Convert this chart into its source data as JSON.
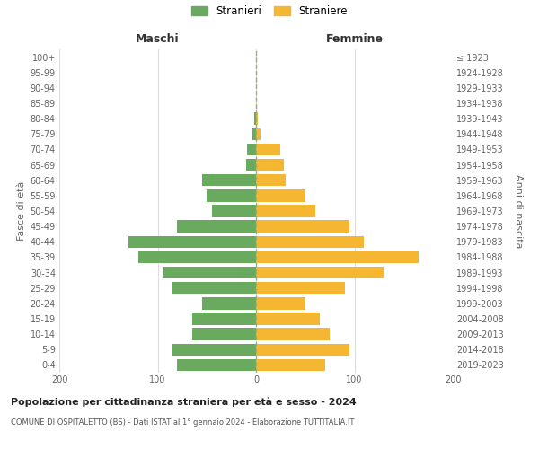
{
  "age_groups": [
    "0-4",
    "5-9",
    "10-14",
    "15-19",
    "20-24",
    "25-29",
    "30-34",
    "35-39",
    "40-44",
    "45-49",
    "50-54",
    "55-59",
    "60-64",
    "65-69",
    "70-74",
    "75-79",
    "80-84",
    "85-89",
    "90-94",
    "95-99",
    "100+"
  ],
  "birth_years": [
    "2019-2023",
    "2014-2018",
    "2009-2013",
    "2004-2008",
    "1999-2003",
    "1994-1998",
    "1989-1993",
    "1984-1988",
    "1979-1983",
    "1974-1978",
    "1969-1973",
    "1964-1968",
    "1959-1963",
    "1954-1958",
    "1949-1953",
    "1944-1948",
    "1939-1943",
    "1934-1938",
    "1929-1933",
    "1924-1928",
    "≤ 1923"
  ],
  "maschi": [
    80,
    85,
    65,
    65,
    55,
    85,
    95,
    120,
    130,
    80,
    45,
    50,
    55,
    10,
    9,
    4,
    2,
    0,
    0,
    0,
    0
  ],
  "femmine": [
    70,
    95,
    75,
    65,
    50,
    90,
    130,
    165,
    110,
    95,
    60,
    50,
    30,
    28,
    25,
    5,
    2,
    0,
    0,
    0,
    0
  ],
  "color_maschi": "#6aaa5e",
  "color_femmine": "#f5b731",
  "title": "Popolazione per cittadinanza straniera per età e sesso - 2024",
  "subtitle": "COMUNE DI OSPITALETTO (BS) - Dati ISTAT al 1° gennaio 2024 - Elaborazione TUTTITALIA.IT",
  "xlabel_left": "Maschi",
  "xlabel_right": "Femmine",
  "ylabel_left": "Fasce di età",
  "ylabel_right": "Anni di nascita",
  "legend_maschi": "Stranieri",
  "legend_femmine": "Straniere",
  "xlim": 200,
  "background_color": "#ffffff",
  "grid_color": "#dddddd"
}
